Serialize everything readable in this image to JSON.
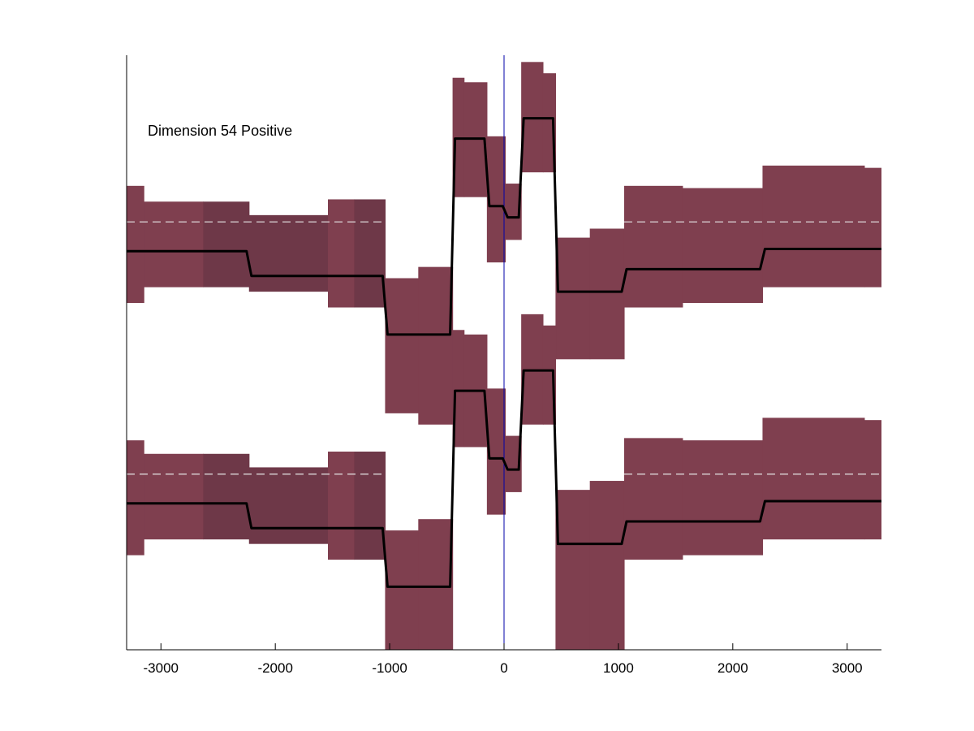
{
  "chart_data": {
    "type": "area",
    "title": "",
    "xlabel": "",
    "ylabel": "",
    "annotation": "Dimension 54 Positive",
    "xlim": [
      -3300,
      3300
    ],
    "ylim": [
      -1.32,
      1.32
    ],
    "x_ticks": [
      -3000,
      -2000,
      -1000,
      0,
      1000,
      2000,
      3000
    ],
    "x_tick_labels": [
      "-3000",
      "-2000",
      "-1000",
      "0",
      "1000",
      "2000",
      "3000"
    ],
    "y_ticks_visible": false,
    "grid": false,
    "legend": "none",
    "colors": {
      "band": "#7f3f4f",
      "band_overlap": "#6e3848",
      "step_line": "#000000",
      "reference_dash": "#e6e6e6",
      "zero_line": "#0000aa",
      "axis": "#000000"
    },
    "series": [
      {
        "bins": [
          {
            "x0": -3300,
            "x1": -3150,
            "lo": 0.22,
            "hi": 0.74,
            "mean": 0.45
          },
          {
            "x0": -3150,
            "x1": -2630,
            "lo": 0.29,
            "hi": 0.67,
            "mean": 0.45
          },
          {
            "x0": -2630,
            "x1": -2230,
            "lo": 0.29,
            "hi": 0.67,
            "mean": 0.45
          },
          {
            "x0": -2230,
            "x1": -1540,
            "lo": 0.27,
            "hi": 0.61,
            "mean": 0.34
          },
          {
            "x0": -1540,
            "x1": -1310,
            "lo": 0.2,
            "hi": 0.68,
            "mean": 0.34
          },
          {
            "x0": -1310,
            "x1": -1040,
            "lo": 0.2,
            "hi": 0.68,
            "mean": 0.34
          },
          {
            "x0": -1040,
            "x1": -750,
            "lo": -0.27,
            "hi": 0.33,
            "mean": 0.08
          },
          {
            "x0": -750,
            "x1": -450,
            "lo": -0.32,
            "hi": 0.38,
            "mean": 0.08
          },
          {
            "x0": -450,
            "x1": -350,
            "lo": 0.69,
            "hi": 1.22,
            "mean": 0.95
          },
          {
            "x0": -350,
            "x1": -150,
            "lo": 0.69,
            "hi": 1.2,
            "mean": 0.95
          },
          {
            "x0": -150,
            "x1": 10,
            "lo": 0.4,
            "hi": 0.96,
            "mean": 0.65
          },
          {
            "x0": 10,
            "x1": 150,
            "lo": 0.5,
            "hi": 0.75,
            "mean": 0.6
          },
          {
            "x0": 150,
            "x1": 340,
            "lo": 0.8,
            "hi": 1.29,
            "mean": 1.04
          },
          {
            "x0": 340,
            "x1": 450,
            "lo": 0.8,
            "hi": 1.24,
            "mean": 1.04
          },
          {
            "x0": 450,
            "x1": 750,
            "lo": -0.03,
            "hi": 0.51,
            "mean": 0.27
          },
          {
            "x0": 750,
            "x1": 1050,
            "lo": -0.03,
            "hi": 0.55,
            "mean": 0.27
          },
          {
            "x0": 1050,
            "x1": 1560,
            "lo": 0.2,
            "hi": 0.74,
            "mean": 0.37
          },
          {
            "x0": 1560,
            "x1": 2260,
            "lo": 0.22,
            "hi": 0.73,
            "mean": 0.37
          },
          {
            "x0": 2260,
            "x1": 3150,
            "lo": 0.29,
            "hi": 0.83,
            "mean": 0.46
          },
          {
            "x0": 3150,
            "x1": 3300,
            "lo": 0.29,
            "hi": 0.82,
            "mean": 0.46
          }
        ],
        "dashed_reference": 0.58
      },
      {
        "bins": [
          {
            "x0": -3300,
            "x1": -3150,
            "lo": -0.9,
            "hi": -0.39,
            "mean": -0.67
          },
          {
            "x0": -3150,
            "x1": -2630,
            "lo": -0.83,
            "hi": -0.45,
            "mean": -0.67
          },
          {
            "x0": -2630,
            "x1": -2230,
            "lo": -0.83,
            "hi": -0.45,
            "mean": -0.67
          },
          {
            "x0": -2230,
            "x1": -1540,
            "lo": -0.85,
            "hi": -0.51,
            "mean": -0.78
          },
          {
            "x0": -1540,
            "x1": -1310,
            "lo": -0.92,
            "hi": -0.44,
            "mean": -0.78
          },
          {
            "x0": -1310,
            "x1": -1040,
            "lo": -0.92,
            "hi": -0.44,
            "mean": -0.78
          },
          {
            "x0": -1040,
            "x1": -750,
            "lo": -1.32,
            "hi": -0.79,
            "mean": -1.04
          },
          {
            "x0": -750,
            "x1": -450,
            "lo": -1.32,
            "hi": -0.74,
            "mean": -1.04
          },
          {
            "x0": -450,
            "x1": -350,
            "lo": -0.42,
            "hi": 0.1,
            "mean": -0.17
          },
          {
            "x0": -350,
            "x1": -150,
            "lo": -0.42,
            "hi": 0.08,
            "mean": -0.17
          },
          {
            "x0": -150,
            "x1": 10,
            "lo": -0.72,
            "hi": -0.16,
            "mean": -0.47
          },
          {
            "x0": 10,
            "x1": 150,
            "lo": -0.62,
            "hi": -0.37,
            "mean": -0.52
          },
          {
            "x0": 150,
            "x1": 340,
            "lo": -0.32,
            "hi": 0.17,
            "mean": -0.08
          },
          {
            "x0": 340,
            "x1": 450,
            "lo": -0.32,
            "hi": 0.12,
            "mean": -0.08
          },
          {
            "x0": 450,
            "x1": 750,
            "lo": -1.32,
            "hi": -0.61,
            "mean": -0.85
          },
          {
            "x0": 750,
            "x1": 1050,
            "lo": -1.32,
            "hi": -0.57,
            "mean": -0.85
          },
          {
            "x0": 1050,
            "x1": 1560,
            "lo": -0.92,
            "hi": -0.38,
            "mean": -0.75
          },
          {
            "x0": 1560,
            "x1": 2260,
            "lo": -0.9,
            "hi": -0.39,
            "mean": -0.75
          },
          {
            "x0": 2260,
            "x1": 3150,
            "lo": -0.83,
            "hi": -0.29,
            "mean": -0.66
          },
          {
            "x0": 3150,
            "x1": 3300,
            "lo": -0.83,
            "hi": -0.3,
            "mean": -0.66
          }
        ],
        "dashed_reference": -0.54
      }
    ],
    "zero_line_x": 0
  }
}
